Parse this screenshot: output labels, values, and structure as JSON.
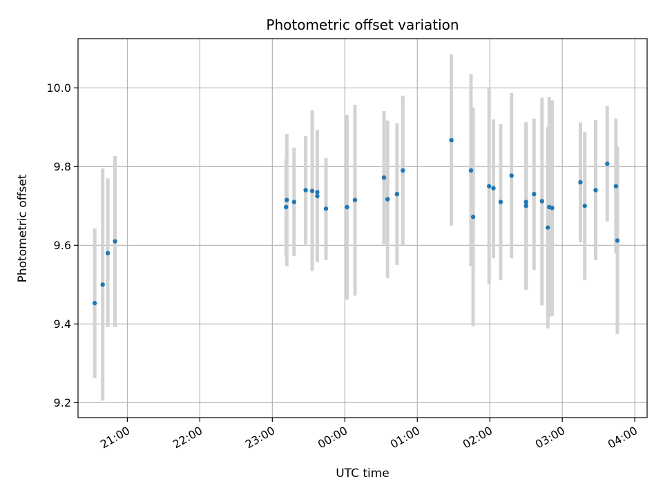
{
  "chart_data": {
    "type": "scatter",
    "title": "Photometric offset variation",
    "xlabel": "UTC time",
    "ylabel": "Photometric offset",
    "x_unit": "hours after 20:00 UTC",
    "xlim": [
      0.3,
      8.15
    ],
    "ylim": [
      9.162,
      10.125
    ],
    "grid": true,
    "x_ticks": [
      {
        "value": 0.98,
        "label": "21:00"
      },
      {
        "value": 1.98,
        "label": "22:00"
      },
      {
        "value": 2.98,
        "label": "23:00"
      },
      {
        "value": 3.98,
        "label": "00:00"
      },
      {
        "value": 4.98,
        "label": "01:00"
      },
      {
        "value": 5.98,
        "label": "02:00"
      },
      {
        "value": 6.98,
        "label": "03:00"
      },
      {
        "value": 7.98,
        "label": "04:00"
      }
    ],
    "y_ticks": [
      9.2,
      9.4,
      9.6,
      9.8,
      10.0
    ],
    "y_tick_labels": [
      "9.2",
      "9.4",
      "9.6",
      "9.8",
      "10.0"
    ],
    "colors": {
      "points": "#1f77b4",
      "errorbars": "#d3d3d3",
      "grid": "#b0b0b0",
      "axes": "#000000"
    },
    "points": [
      {
        "x": 0.53,
        "y": 9.453,
        "lo": 9.262,
        "hi": 9.643
      },
      {
        "x": 0.64,
        "y": 9.5,
        "lo": 9.205,
        "hi": 9.795
      },
      {
        "x": 0.71,
        "y": 9.58,
        "lo": 9.392,
        "hi": 9.77
      },
      {
        "x": 0.81,
        "y": 9.61,
        "lo": 9.392,
        "hi": 9.827
      },
      {
        "x": 3.17,
        "y": 9.697,
        "lo": 9.572,
        "hi": 9.82
      },
      {
        "x": 3.18,
        "y": 9.715,
        "lo": 9.547,
        "hi": 9.883
      },
      {
        "x": 3.28,
        "y": 9.71,
        "lo": 9.572,
        "hi": 9.848
      },
      {
        "x": 3.44,
        "y": 9.74,
        "lo": 9.602,
        "hi": 9.878
      },
      {
        "x": 3.53,
        "y": 9.738,
        "lo": 9.535,
        "hi": 9.943
      },
      {
        "x": 3.6,
        "y": 9.735,
        "lo": 9.577,
        "hi": 9.893
      },
      {
        "x": 3.6,
        "y": 9.725,
        "lo": 9.557,
        "hi": 9.893
      },
      {
        "x": 3.72,
        "y": 9.693,
        "lo": 9.562,
        "hi": 9.822
      },
      {
        "x": 4.01,
        "y": 9.697,
        "lo": 9.462,
        "hi": 9.931
      },
      {
        "x": 4.12,
        "y": 9.715,
        "lo": 9.472,
        "hi": 9.957
      },
      {
        "x": 4.52,
        "y": 9.772,
        "lo": 9.602,
        "hi": 9.941
      },
      {
        "x": 4.57,
        "y": 9.717,
        "lo": 9.517,
        "hi": 9.917
      },
      {
        "x": 4.7,
        "y": 9.73,
        "lo": 9.55,
        "hi": 9.91
      },
      {
        "x": 4.78,
        "y": 9.79,
        "lo": 9.6,
        "hi": 9.98
      },
      {
        "x": 5.45,
        "y": 9.867,
        "lo": 9.65,
        "hi": 10.085
      },
      {
        "x": 5.72,
        "y": 9.79,
        "lo": 9.547,
        "hi": 10.035
      },
      {
        "x": 5.75,
        "y": 9.672,
        "lo": 9.394,
        "hi": 9.95
      },
      {
        "x": 5.97,
        "y": 9.75,
        "lo": 9.502,
        "hi": 10.0
      },
      {
        "x": 6.03,
        "y": 9.745,
        "lo": 9.567,
        "hi": 9.92
      },
      {
        "x": 6.13,
        "y": 9.71,
        "lo": 9.511,
        "hi": 9.908
      },
      {
        "x": 6.28,
        "y": 9.777,
        "lo": 9.567,
        "hi": 9.987
      },
      {
        "x": 6.48,
        "y": 9.7,
        "lo": 9.487,
        "hi": 9.912
      },
      {
        "x": 6.48,
        "y": 9.71,
        "lo": 9.487,
        "hi": 9.912
      },
      {
        "x": 6.59,
        "y": 9.73,
        "lo": 9.537,
        "hi": 9.922
      },
      {
        "x": 6.7,
        "y": 9.712,
        "lo": 9.447,
        "hi": 9.975
      },
      {
        "x": 6.78,
        "y": 9.645,
        "lo": 9.389,
        "hi": 9.9
      },
      {
        "x": 6.8,
        "y": 9.697,
        "lo": 9.417,
        "hi": 9.977
      },
      {
        "x": 6.84,
        "y": 9.695,
        "lo": 9.42,
        "hi": 9.968
      },
      {
        "x": 7.23,
        "y": 9.76,
        "lo": 9.607,
        "hi": 9.912
      },
      {
        "x": 7.29,
        "y": 9.7,
        "lo": 9.512,
        "hi": 9.888
      },
      {
        "x": 7.44,
        "y": 9.74,
        "lo": 9.562,
        "hi": 9.918
      },
      {
        "x": 7.6,
        "y": 9.807,
        "lo": 9.66,
        "hi": 9.954
      },
      {
        "x": 7.72,
        "y": 9.75,
        "lo": 9.58,
        "hi": 9.922
      },
      {
        "x": 7.74,
        "y": 9.612,
        "lo": 9.374,
        "hi": 9.85
      }
    ]
  }
}
